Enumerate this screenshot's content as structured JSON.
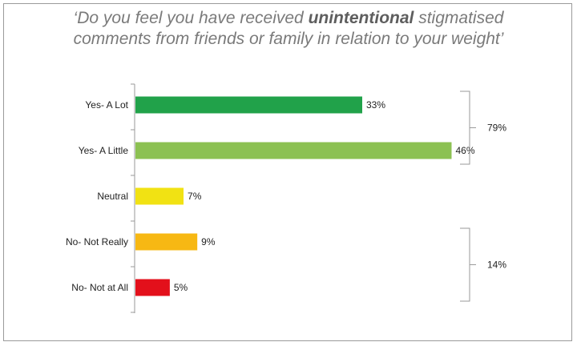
{
  "title": {
    "part1": "‘Do you feel you have received ",
    "emphasis": "unintentional",
    "part2": " stigmatised",
    "line2": "comments from friends or family in relation to your weight’"
  },
  "chart_data": {
    "type": "bar",
    "orientation": "horizontal",
    "categories": [
      "Yes- A Lot",
      "Yes- A Little",
      "Neutral",
      "No- Not Really",
      "No- Not at All"
    ],
    "values": [
      33,
      46,
      7,
      9,
      5
    ],
    "value_labels": [
      "33%",
      "46%",
      "7%",
      "9%",
      "5%"
    ],
    "colors": [
      "#21a24a",
      "#8cc152",
      "#f1e213",
      "#f7b813",
      "#e3101b"
    ],
    "xlim": [
      0,
      50
    ],
    "grid": false,
    "groups": [
      {
        "label": "79%",
        "from": 0,
        "to": 1
      },
      {
        "label": "14%",
        "from": 3,
        "to": 4
      }
    ]
  }
}
